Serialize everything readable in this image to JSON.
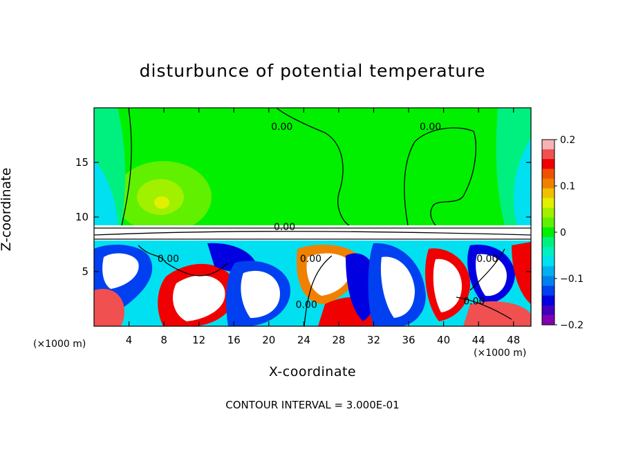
{
  "chart_data": {
    "type": "heatmap",
    "title": "disturbunce of potential temperature",
    "xlabel": "X-coordinate",
    "ylabel": "Z-coordinate",
    "x_unit_label_left": "(×1000 m)",
    "x_unit_label_right": "(×1000 m)",
    "footer": "CONTOUR INTERVAL = 3.000E-01",
    "xlim": [
      0,
      50
    ],
    "ylim": [
      0,
      20
    ],
    "x_ticks": [
      4,
      8,
      12,
      16,
      20,
      24,
      28,
      32,
      36,
      40,
      44,
      48
    ],
    "x_tick_labels": [
      "4",
      "8",
      "12",
      "16",
      "20",
      "24",
      "28",
      "32",
      "36",
      "40",
      "44",
      "48"
    ],
    "y_ticks": [
      5,
      10,
      15
    ],
    "y_tick_labels": [
      "5",
      "10",
      "15"
    ],
    "colorbar": {
      "range": [
        -0.2,
        0.2
      ],
      "ticks": [
        0.2,
        0.1,
        0,
        -0.1,
        -0.2
      ],
      "tick_labels": [
        "0.2",
        "0.1",
        "0",
        "−0.1",
        "−0.2"
      ],
      "colors": [
        "#f7b3b3",
        "#f05050",
        "#f00000",
        "#f05000",
        "#f08000",
        "#f0c000",
        "#e0f000",
        "#a0f000",
        "#60f000",
        "#00f000",
        "#00f080",
        "#00f0c0",
        "#00e0f0",
        "#00b0f0",
        "#0080f0",
        "#0040f0",
        "#0000e0",
        "#4000c0",
        "#8000b0"
      ]
    },
    "contour_labels": [
      {
        "text": "0.00",
        "x": 21.5,
        "y": 18.3
      },
      {
        "text": "0.00",
        "x": 38.5,
        "y": 18.3
      },
      {
        "text": "0.00",
        "x": 21.8,
        "y": 9.1
      },
      {
        "text": "0.00",
        "x": 8.5,
        "y": 6.2
      },
      {
        "text": "0.00",
        "x": 24.8,
        "y": 6.2
      },
      {
        "text": "0.00",
        "x": 24.3,
        "y": 2.0
      },
      {
        "text": "0.00",
        "x": 45.0,
        "y": 6.2
      },
      {
        "text": "0.00",
        "x": 43.5,
        "y": 2.3
      }
    ]
  }
}
